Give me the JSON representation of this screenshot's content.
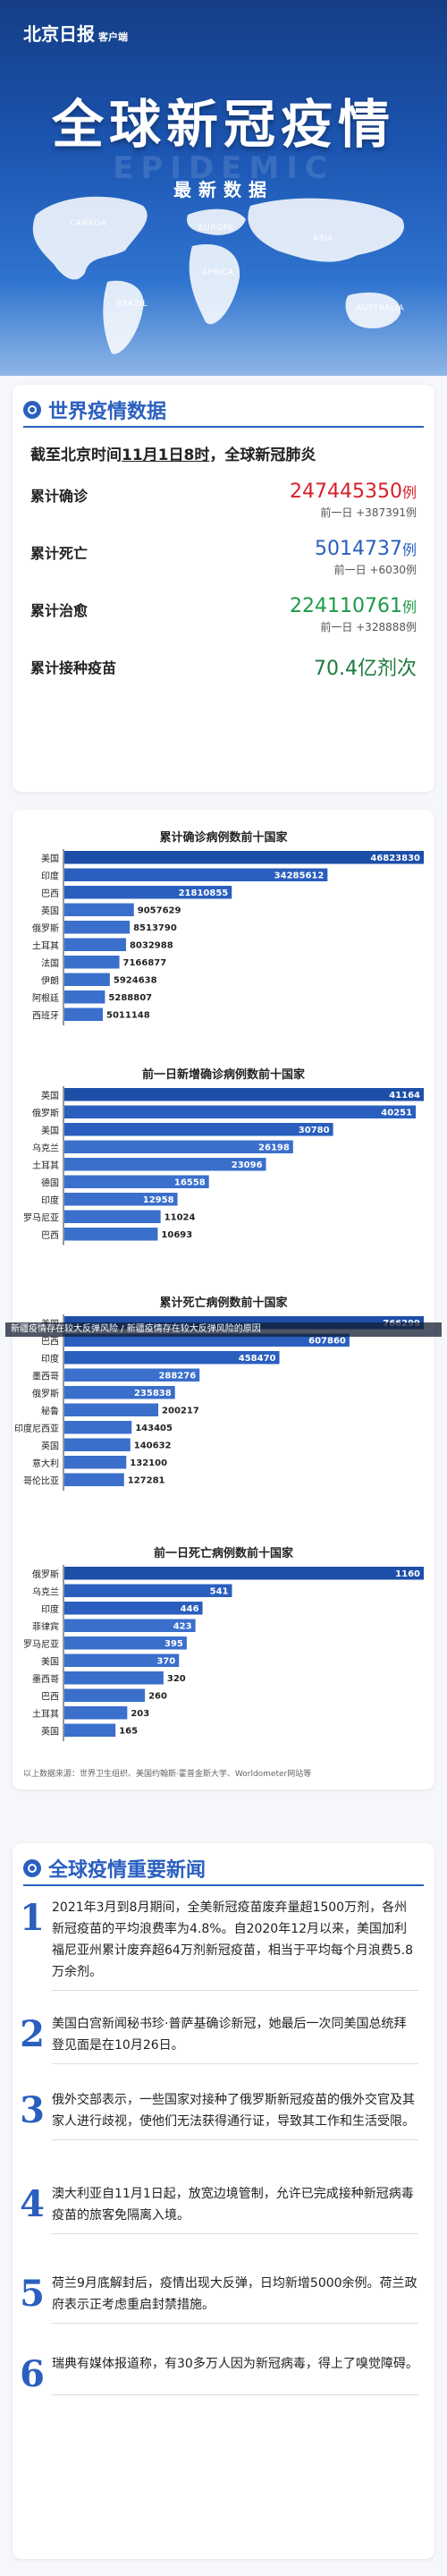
{
  "header": {
    "logo": "北京日报",
    "logo_sub": "客户端",
    "title": "全球新冠疫情",
    "watermark": "EPIDEMIC",
    "subtitle": "最新数据",
    "map_labels": [
      "CANADA",
      "EUROPE",
      "ASIA",
      "AFRICA",
      "BRAZIL",
      "AUSTRALIA"
    ]
  },
  "world_data": {
    "section_title": "世界疫情数据",
    "headline_prefix": "截至北京时间",
    "headline_date": "11月1日8时",
    "headline_suffix": "，全球新冠肺炎",
    "stats": [
      {
        "label": "累计确诊",
        "value": "247445350",
        "unit": "例",
        "prev": "前一日 +387391例",
        "color": "#d6202a"
      },
      {
        "label": "累计死亡",
        "value": "5014737",
        "unit": "例",
        "prev": "前一日 +6030例",
        "color": "#2a5fbf"
      },
      {
        "label": "累计治愈",
        "value": "224110761",
        "unit": "例",
        "prev": "前一日 +328888例",
        "color": "#1e9a47"
      },
      {
        "label": "累计接种疫苗",
        "value": "70.4亿剂次",
        "unit": "",
        "prev": "",
        "color": "#1e7a3e"
      }
    ]
  },
  "chart_data": [
    {
      "type": "bar",
      "title": "累计确诊病例数前十国家",
      "categories": [
        "美国",
        "印度",
        "巴西",
        "英国",
        "俄罗斯",
        "土耳其",
        "法国",
        "伊朗",
        "阿根廷",
        "西班牙"
      ],
      "values": [
        46823830,
        34285612,
        21810855,
        9057629,
        8513790,
        8032988,
        7166877,
        5924638,
        5288807,
        5011148
      ]
    },
    {
      "type": "bar",
      "title": "前一日新增确诊病例数前十国家",
      "categories": [
        "英国",
        "俄罗斯",
        "美国",
        "乌克兰",
        "土耳其",
        "德国",
        "印度",
        "罗马尼亚",
        "巴西"
      ],
      "values": [
        41164,
        40251,
        30780,
        26198,
        23096,
        16558,
        12958,
        11024,
        10693
      ]
    },
    {
      "type": "bar",
      "title": "累计死亡病例数前十国家",
      "categories": [
        "美国",
        "巴西",
        "印度",
        "墨西哥",
        "俄罗斯",
        "秘鲁",
        "印度尼西亚",
        "英国",
        "意大利",
        "哥伦比亚"
      ],
      "values": [
        766299,
        607860,
        458470,
        288276,
        235838,
        200217,
        143405,
        140632,
        132100,
        127281
      ]
    },
    {
      "type": "bar",
      "title": "前一日死亡病例数前十国家",
      "categories": [
        "俄罗斯",
        "乌克兰",
        "印度",
        "菲律宾",
        "罗马尼亚",
        "美国",
        "墨西哥",
        "巴西",
        "土耳其",
        "英国"
      ],
      "values": [
        1160,
        541,
        446,
        423,
        395,
        370,
        320,
        260,
        203,
        165
      ]
    }
  ],
  "chart_source": "以上数据来源：世界卫生组织、美国约翰斯·霍普金斯大学、Worldometer网站等",
  "overlay_text": "新疆疫情存在较大反弹风险 / 新疆疫情存在较大反弹风险的原因",
  "news": {
    "section_title": "全球疫情重要新闻",
    "items": [
      {
        "num": "1",
        "text": "2021年3月到8月期间，全美新冠疫苗废弃量超1500万剂，各州新冠疫苗的平均浪费率为4.8%。自2020年12月以来，美国加利福尼亚州累计废弃超64万剂新冠疫苗，相当于平均每个月浪费5.8万余剂。"
      },
      {
        "num": "2",
        "text": "美国白宫新闻秘书珍·普萨基确诊新冠，她最后一次同美国总统拜登见面是在10月26日。"
      },
      {
        "num": "3",
        "text": "俄外交部表示，一些国家对接种了俄罗斯新冠疫苗的俄外交官及其家人进行歧视，使他们无法获得通行证，导致其工作和生活受限。"
      },
      {
        "num": "4",
        "text": "澳大利亚自11月1日起，放宽边境管制，允许已完成接种新冠病毒疫苗的旅客免隔离入境。"
      },
      {
        "num": "5",
        "text": "荷兰9月底解封后，疫情出现大反弹，日均新增5000余例。荷兰政府表示正考虑重启封禁措施。"
      },
      {
        "num": "6",
        "text": "瑞典有媒体报道称，有30多万人因为新冠病毒，得上了嗅觉障碍。"
      }
    ]
  }
}
